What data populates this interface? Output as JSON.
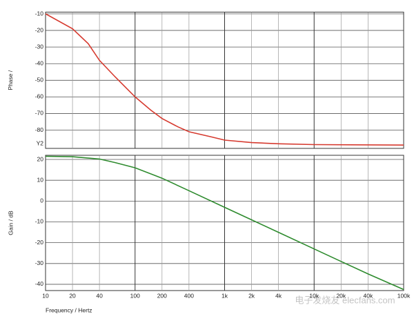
{
  "chart_data": [
    {
      "type": "line",
      "ylabel": "Phase /",
      "log_x": true,
      "xlim": [
        10,
        100000
      ],
      "ylim": [
        -91,
        -9
      ],
      "yticks": [
        -10,
        -20,
        -30,
        -40,
        -50,
        -60,
        -70,
        -80
      ],
      "grid": true,
      "annotation": "Y2",
      "color": "#d63a2f",
      "x": [
        10,
        20,
        30,
        40,
        60,
        100,
        150,
        200,
        300,
        400,
        700,
        1000,
        2000,
        4000,
        10000,
        100000
      ],
      "values": [
        -10,
        -19,
        -28,
        -38,
        -48,
        -60,
        -68,
        -73,
        -78,
        -81,
        -84,
        -86,
        -87.5,
        -88.2,
        -88.7,
        -89
      ]
    },
    {
      "type": "line",
      "ylabel": "Gain / dB",
      "xlabel": "Frequency / Hertz",
      "log_x": true,
      "xlim": [
        10,
        100000
      ],
      "xticks": [
        10,
        20,
        40,
        100,
        200,
        400,
        {
          "value": 1000,
          "label": "1k"
        },
        {
          "value": 2000,
          "label": "2k"
        },
        {
          "value": 4000,
          "label": "4k"
        },
        {
          "value": 10000,
          "label": "10k"
        },
        {
          "value": 20000,
          "label": "20k"
        },
        {
          "value": 40000,
          "label": "40k"
        },
        {
          "value": 100000,
          "label": "100k"
        }
      ],
      "ylim": [
        -43,
        22
      ],
      "yticks": [
        20,
        10,
        0,
        -10,
        -20,
        -30,
        -40
      ],
      "grid": true,
      "color": "#2e8b2e",
      "x": [
        10,
        20,
        40,
        60,
        100,
        200,
        400,
        1000,
        2000,
        4000,
        10000,
        20000,
        40000,
        100000
      ],
      "values": [
        21.5,
        21.3,
        20.2,
        18.5,
        16,
        11,
        5,
        -3,
        -9,
        -15,
        -23,
        -29,
        -35,
        -42.5
      ]
    }
  ],
  "watermark": "电子发烧友 elecfans.com"
}
